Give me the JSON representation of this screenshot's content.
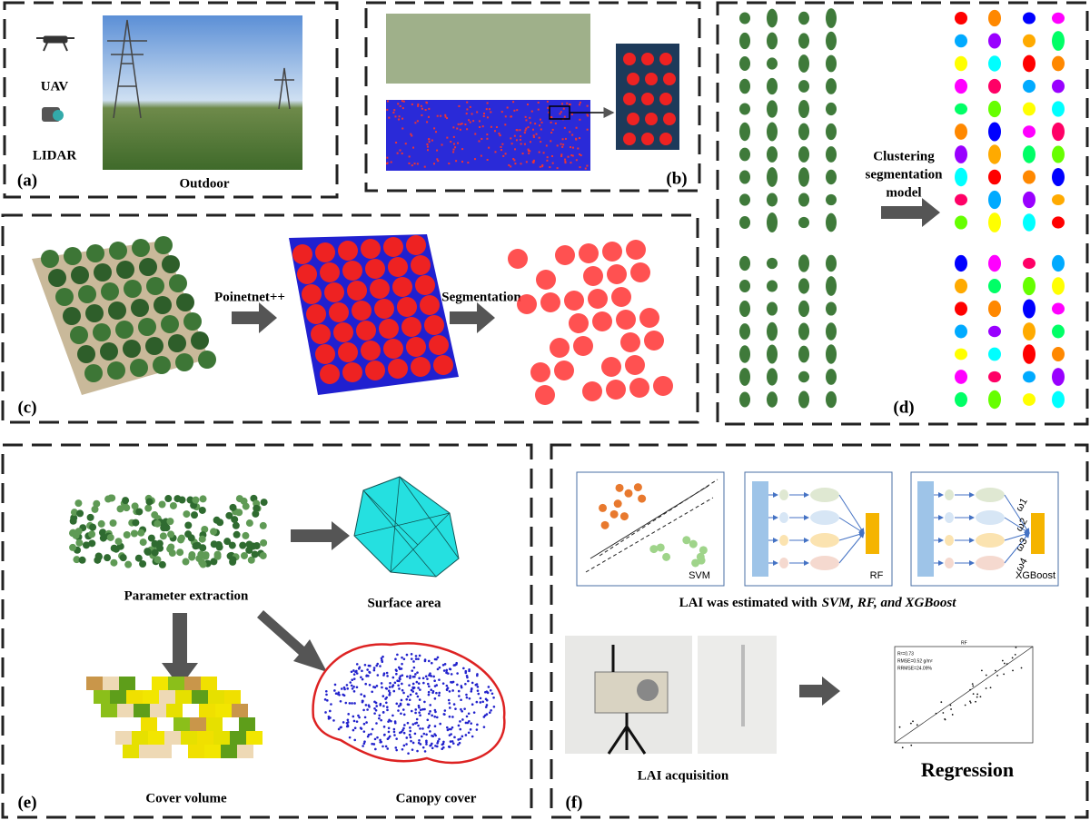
{
  "panels": {
    "a": {
      "label": "(a)",
      "uav": "UAV",
      "lidar": "LIDAR",
      "caption": "Outdoor"
    },
    "b": {
      "label": "(b)"
    },
    "c": {
      "label": "(c)",
      "step1": "Poinetnet++",
      "step2": "Segmentation"
    },
    "d": {
      "label": "(d)",
      "model": [
        "Clustering",
        "segmentation",
        "model"
      ]
    },
    "e": {
      "label": "(e)",
      "extraction": "Parameter extraction",
      "surface": "Surface area",
      "volume": "Cover volume",
      "cover": "Canopy cover"
    },
    "f": {
      "label": "(f)",
      "svm": "SVM",
      "rf": "RF",
      "xgb": "XGBoost",
      "weights": [
        "ω1",
        "ω2",
        "ω3",
        "ω4"
      ],
      "title": {
        "prefix": "LAI was estimated with",
        "italic": "SVM, RF, and XGBoost"
      },
      "acquisition": "LAI acquisition",
      "regression": "Regression",
      "plot": {
        "title": "RF",
        "r2": "R²=0.73",
        "rmse": "RMSE=0.52 g/m²",
        "rrmse": "RRMSE=24.09%"
      }
    }
  }
}
